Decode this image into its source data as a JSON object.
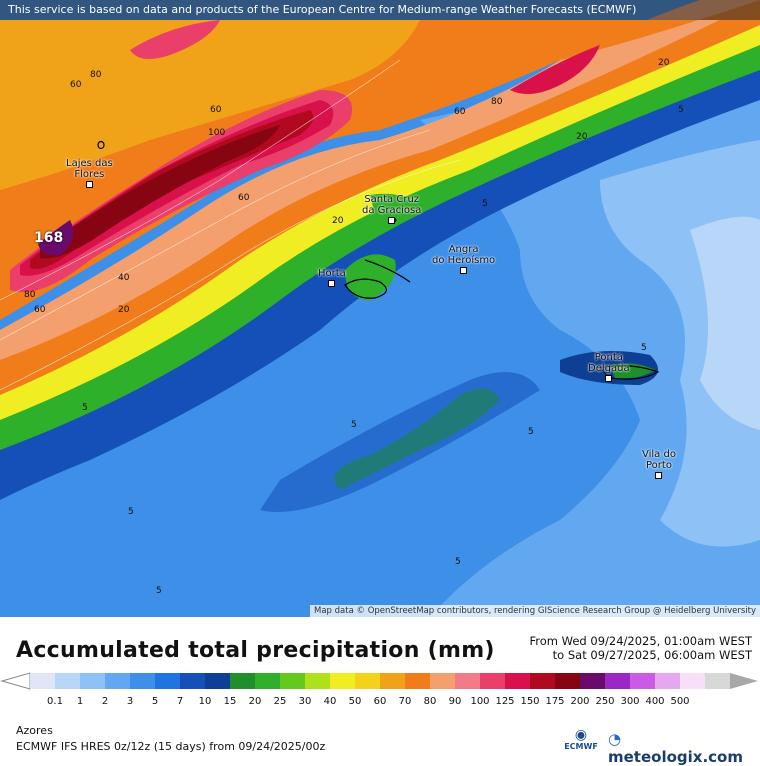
{
  "notice": "This service is based on data and products of the European Centre for Medium-range Weather Forecasts (ECMWF)",
  "attribution": "Map data © OpenStreetMap contributors, rendering GIScience Research Group @ Heidelberg University",
  "title": "Accumulated total precipitation (mm)",
  "period": {
    "from": "From Wed 09/24/2025, 01:00am WEST",
    "to": "to Sat 09/27/2025, 06:00am WEST"
  },
  "region": "Azores",
  "model": "ECMWF IFS HRES 0z/12z (15 days) from  09/24/2025/00z",
  "brand": {
    "ecmwf": "ECMWF",
    "meteologix": "meteologix.com"
  },
  "places": [
    {
      "name": "Lajes das",
      "name2": "Flores"
    },
    {
      "name": "Santa Cruz",
      "name2": "da Graciosa"
    },
    {
      "name": "Angra",
      "name2": "do Heroísmo"
    },
    {
      "name": "Horta",
      "name2": ""
    },
    {
      "name": "Ponta",
      "name2": "Delgada"
    },
    {
      "name": "Vila do",
      "name2": "Porto"
    }
  ],
  "max_value": "168",
  "contour_labels": [
    "80",
    "60",
    "60",
    "100",
    "60",
    "40",
    "20",
    "80",
    "60",
    "20",
    "60",
    "80",
    "20",
    "5",
    "20",
    "5",
    "5",
    "5",
    "5",
    "5",
    "5",
    "5",
    "5"
  ],
  "legend": {
    "ticks": [
      "0.1",
      "1",
      "2",
      "3",
      "5",
      "7",
      "10",
      "15",
      "20",
      "25",
      "30",
      "40",
      "50",
      "60",
      "70",
      "80",
      "90",
      "100",
      "125",
      "150",
      "175",
      "200",
      "250",
      "300",
      "400",
      "500"
    ],
    "colors": [
      "#dfe6f5",
      "#b8d6f7",
      "#8ec1f5",
      "#62a8f0",
      "#3d8fe8",
      "#2074e0",
      "#1450b8",
      "#0f3f94",
      "#1e8f2a",
      "#2fb02a",
      "#63c91e",
      "#aee11c",
      "#f0ee22",
      "#f2d21a",
      "#f0a219",
      "#f07d1a",
      "#f4a06e",
      "#f37b88",
      "#ea3e6b",
      "#d9114a",
      "#b00a1e",
      "#870412",
      "#6a0a6a",
      "#9b28c6",
      "#cc5ae6",
      "#e6a6f0",
      "#f5e0f8",
      "#d8d8d8"
    ]
  }
}
